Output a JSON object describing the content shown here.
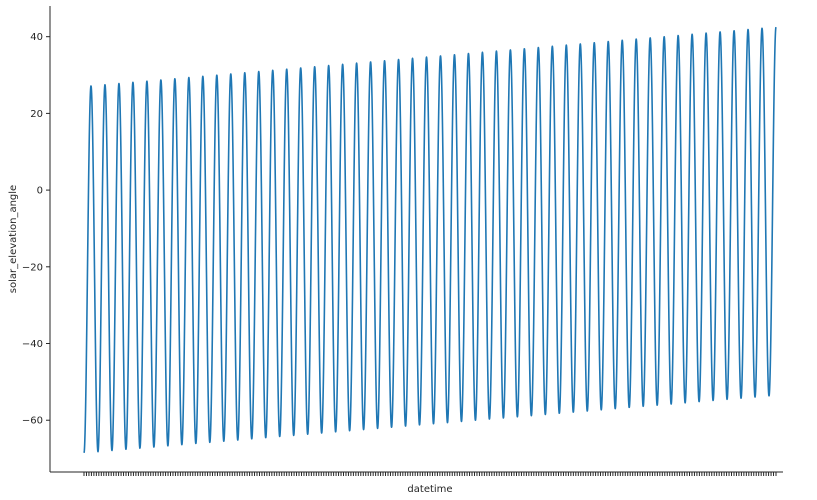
{
  "chart_data": {
    "type": "line",
    "title": "",
    "xlabel": "datetime",
    "ylabel": "solar_elevation_angle",
    "ylim": [
      -73.5,
      48
    ],
    "yticks": [
      -60,
      -40,
      -20,
      0,
      20,
      40
    ],
    "yticklabels": [
      "−60",
      "−40",
      "−20",
      "0",
      "20",
      "40"
    ],
    "xtick_labels_shown": false,
    "grid": false,
    "legend": "none",
    "series": [
      {
        "color": "#1f77b4",
        "x": [
          0,
          49.5
        ],
        "min_start": -68.5,
        "min_end": -53.5,
        "max_start": 27.0,
        "max_end": 42.5,
        "cycles": 49,
        "end_value": -52
      }
    ]
  }
}
